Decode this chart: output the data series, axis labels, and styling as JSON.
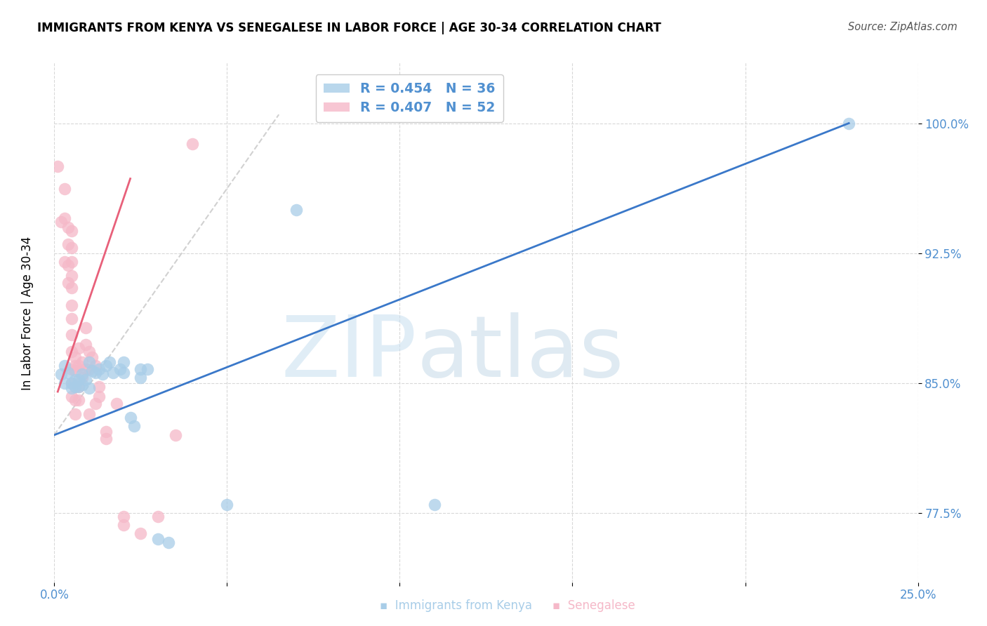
{
  "title": "IMMIGRANTS FROM KENYA VS SENEGALESE IN LABOR FORCE | AGE 30-34 CORRELATION CHART",
  "source": "Source: ZipAtlas.com",
  "ylabel": "In Labor Force | Age 30-34",
  "xlim": [
    0.0,
    0.25
  ],
  "ylim": [
    0.735,
    1.035
  ],
  "yticks": [
    0.775,
    0.85,
    0.925,
    1.0
  ],
  "ytick_labels": [
    "77.5%",
    "85.0%",
    "92.5%",
    "100.0%"
  ],
  "xticks": [
    0.0,
    0.05,
    0.1,
    0.15,
    0.2,
    0.25
  ],
  "xtick_labels": [
    "0.0%",
    "",
    "",
    "",
    "",
    "25.0%"
  ],
  "kenya_color": "#a8cde8",
  "senegal_color": "#f5b8c8",
  "kenya_line_color": "#3a78c9",
  "senegal_line_color": "#e8607a",
  "dashed_color": "#cccccc",
  "tick_color": "#5090d0",
  "legend_kenya_color": "#a8cde8",
  "legend_senegal_color": "#f5b8c8",
  "kenya_scatter": [
    [
      0.002,
      0.855
    ],
    [
      0.003,
      0.85
    ],
    [
      0.003,
      0.86
    ],
    [
      0.004,
      0.856
    ],
    [
      0.005,
      0.85
    ],
    [
      0.005,
      0.847
    ],
    [
      0.006,
      0.852
    ],
    [
      0.006,
      0.848
    ],
    [
      0.007,
      0.852
    ],
    [
      0.007,
      0.848
    ],
    [
      0.008,
      0.855
    ],
    [
      0.008,
      0.849
    ],
    [
      0.009,
      0.852
    ],
    [
      0.01,
      0.862
    ],
    [
      0.01,
      0.847
    ],
    [
      0.011,
      0.857
    ],
    [
      0.012,
      0.856
    ],
    [
      0.013,
      0.858
    ],
    [
      0.014,
      0.855
    ],
    [
      0.015,
      0.86
    ],
    [
      0.016,
      0.862
    ],
    [
      0.017,
      0.856
    ],
    [
      0.019,
      0.858
    ],
    [
      0.02,
      0.862
    ],
    [
      0.02,
      0.856
    ],
    [
      0.022,
      0.83
    ],
    [
      0.023,
      0.825
    ],
    [
      0.025,
      0.858
    ],
    [
      0.025,
      0.853
    ],
    [
      0.027,
      0.858
    ],
    [
      0.03,
      0.76
    ],
    [
      0.033,
      0.758
    ],
    [
      0.05,
      0.78
    ],
    [
      0.07,
      0.95
    ],
    [
      0.11,
      0.78
    ],
    [
      0.23,
      1.0
    ]
  ],
  "senegal_scatter": [
    [
      0.001,
      0.975
    ],
    [
      0.002,
      0.943
    ],
    [
      0.003,
      0.962
    ],
    [
      0.003,
      0.945
    ],
    [
      0.004,
      0.94
    ],
    [
      0.004,
      0.93
    ],
    [
      0.004,
      0.918
    ],
    [
      0.005,
      0.938
    ],
    [
      0.005,
      0.928
    ],
    [
      0.005,
      0.92
    ],
    [
      0.005,
      0.912
    ],
    [
      0.005,
      0.905
    ],
    [
      0.005,
      0.895
    ],
    [
      0.005,
      0.887
    ],
    [
      0.005,
      0.878
    ],
    [
      0.005,
      0.868
    ],
    [
      0.005,
      0.858
    ],
    [
      0.005,
      0.85
    ],
    [
      0.006,
      0.865
    ],
    [
      0.006,
      0.857
    ],
    [
      0.006,
      0.848
    ],
    [
      0.006,
      0.84
    ],
    [
      0.007,
      0.87
    ],
    [
      0.007,
      0.86
    ],
    [
      0.007,
      0.848
    ],
    [
      0.008,
      0.862
    ],
    [
      0.008,
      0.853
    ],
    [
      0.009,
      0.882
    ],
    [
      0.009,
      0.872
    ],
    [
      0.009,
      0.858
    ],
    [
      0.01,
      0.868
    ],
    [
      0.01,
      0.858
    ],
    [
      0.01,
      0.832
    ],
    [
      0.011,
      0.865
    ],
    [
      0.012,
      0.86
    ],
    [
      0.012,
      0.838
    ],
    [
      0.013,
      0.848
    ],
    [
      0.013,
      0.842
    ],
    [
      0.015,
      0.822
    ],
    [
      0.015,
      0.818
    ],
    [
      0.018,
      0.838
    ],
    [
      0.02,
      0.773
    ],
    [
      0.02,
      0.768
    ],
    [
      0.025,
      0.763
    ],
    [
      0.03,
      0.773
    ],
    [
      0.035,
      0.82
    ],
    [
      0.04,
      0.988
    ],
    [
      0.003,
      0.92
    ],
    [
      0.004,
      0.908
    ],
    [
      0.005,
      0.842
    ],
    [
      0.006,
      0.832
    ],
    [
      0.006,
      0.86
    ],
    [
      0.007,
      0.84
    ]
  ],
  "kenya_trend_x": [
    0.0,
    0.23
  ],
  "kenya_trend_y": [
    0.82,
    1.0
  ],
  "senegal_trend_x": [
    0.001,
    0.022
  ],
  "senegal_trend_y": [
    0.845,
    0.968
  ],
  "dashed_trend_x": [
    0.0,
    0.065
  ],
  "dashed_trend_y": [
    0.82,
    1.005
  ]
}
